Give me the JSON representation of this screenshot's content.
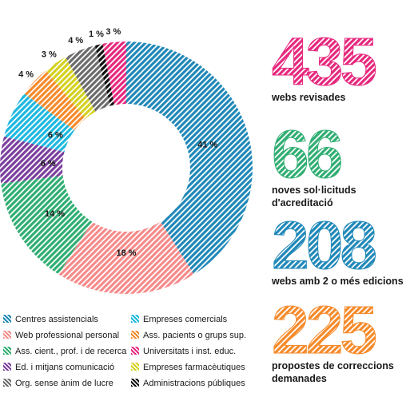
{
  "chart_data": {
    "type": "donut",
    "series": [
      {
        "name": "Centres assistencials",
        "value": 41,
        "label": "41 %",
        "color": "#1f88b8",
        "pattern": "hatch"
      },
      {
        "name": "Web professional personal",
        "value": 18,
        "label": "18 %",
        "color": "#f58a8a",
        "pattern": "hatch"
      },
      {
        "name": "Ass. cient., prof. i de recerca",
        "value": 14,
        "label": "14 %",
        "color": "#2fae72",
        "pattern": "hatch"
      },
      {
        "name": "Ed. i mitjans comunicació",
        "value": 6,
        "label": "6 %",
        "color": "#7b3f9e",
        "pattern": "hatch"
      },
      {
        "name": "Empreses comercials",
        "value": 6,
        "label": "6 %",
        "color": "#1db8e0",
        "pattern": "hatch"
      },
      {
        "name": "Ass. pacients o grups sup.",
        "value": 4,
        "label": "4 %",
        "color": "#f58a2a",
        "pattern": "hatch"
      },
      {
        "name": "Empreses farmacèutiques",
        "value": 3,
        "label": "3 %",
        "color": "#d4d11e",
        "pattern": "hatch"
      },
      {
        "name": "Org. sense ànim de lucre",
        "value": 4,
        "label": "4 %",
        "color": "#6b6b6b",
        "pattern": "hatch"
      },
      {
        "name": "Administracions públiques",
        "value": 1,
        "label": "1 %",
        "color": "#111111",
        "pattern": "hatch"
      },
      {
        "name": "Universitats i inst. educ.",
        "value": 3,
        "label": "3 %",
        "color": "#e6287e",
        "pattern": "hatch"
      }
    ]
  },
  "legend": [
    {
      "label": "Centres assistencials",
      "color": "#1f88b8"
    },
    {
      "label": "Empreses comercials",
      "color": "#1db8e0"
    },
    {
      "label": "Web professional personal",
      "color": "#f58a8a"
    },
    {
      "label": "Ass. pacients o grups sup.",
      "color": "#f58a2a"
    },
    {
      "label": "Ass. cient., prof. i de recerca",
      "color": "#2fae72"
    },
    {
      "label": "Universitats i inst. educ.",
      "color": "#e6287e"
    },
    {
      "label": "Ed. i mitjans comunicació",
      "color": "#7b3f9e"
    },
    {
      "label": "Empreses farmacèutiques",
      "color": "#d4d11e"
    },
    {
      "label": "Org. sense ànim de lucre",
      "color": "#6b6b6b"
    },
    {
      "label": "Administracions públiques",
      "color": "#111111"
    }
  ],
  "stats": [
    {
      "number": "435",
      "label": "webs revisades",
      "color": "#e6287e"
    },
    {
      "number": "66",
      "label": "noves sol·licituds d'acreditació",
      "color": "#2fae72"
    },
    {
      "number": "208",
      "label": "webs amb 2 o més edicions",
      "color": "#1f88b8"
    },
    {
      "number": "225",
      "label": "propostes de correccions demanades",
      "color": "#f58a2a"
    }
  ]
}
